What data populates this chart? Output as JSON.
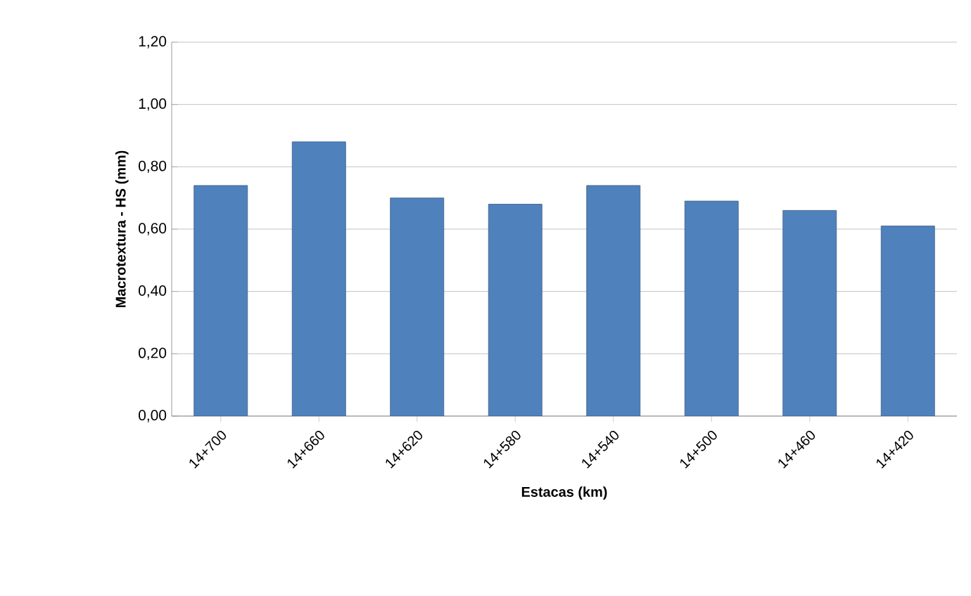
{
  "chart_data": {
    "type": "bar",
    "xlabel": "Estacas (km)",
    "ylabel": "Macrotextura - HS (mm)",
    "categories": [
      "14+700",
      "14+660",
      "14+620",
      "14+580",
      "14+540",
      "14+500",
      "14+460",
      "14+420"
    ],
    "values": [
      0.74,
      0.88,
      0.7,
      0.68,
      0.74,
      0.69,
      0.66,
      0.61
    ],
    "color": "#4f81bd",
    "ylim": [
      0,
      1.2
    ],
    "yticks": [
      {
        "value": 0,
        "label": "0,00"
      },
      {
        "value": 0.2,
        "label": "0,20"
      },
      {
        "value": 0.4,
        "label": "0,40"
      },
      {
        "value": 0.6,
        "label": "0,60"
      },
      {
        "value": 0.8,
        "label": "0,80"
      },
      {
        "value": 1.0,
        "label": "1,00"
      },
      {
        "value": 1.2,
        "label": "1,20"
      }
    ],
    "grid": "y"
  }
}
